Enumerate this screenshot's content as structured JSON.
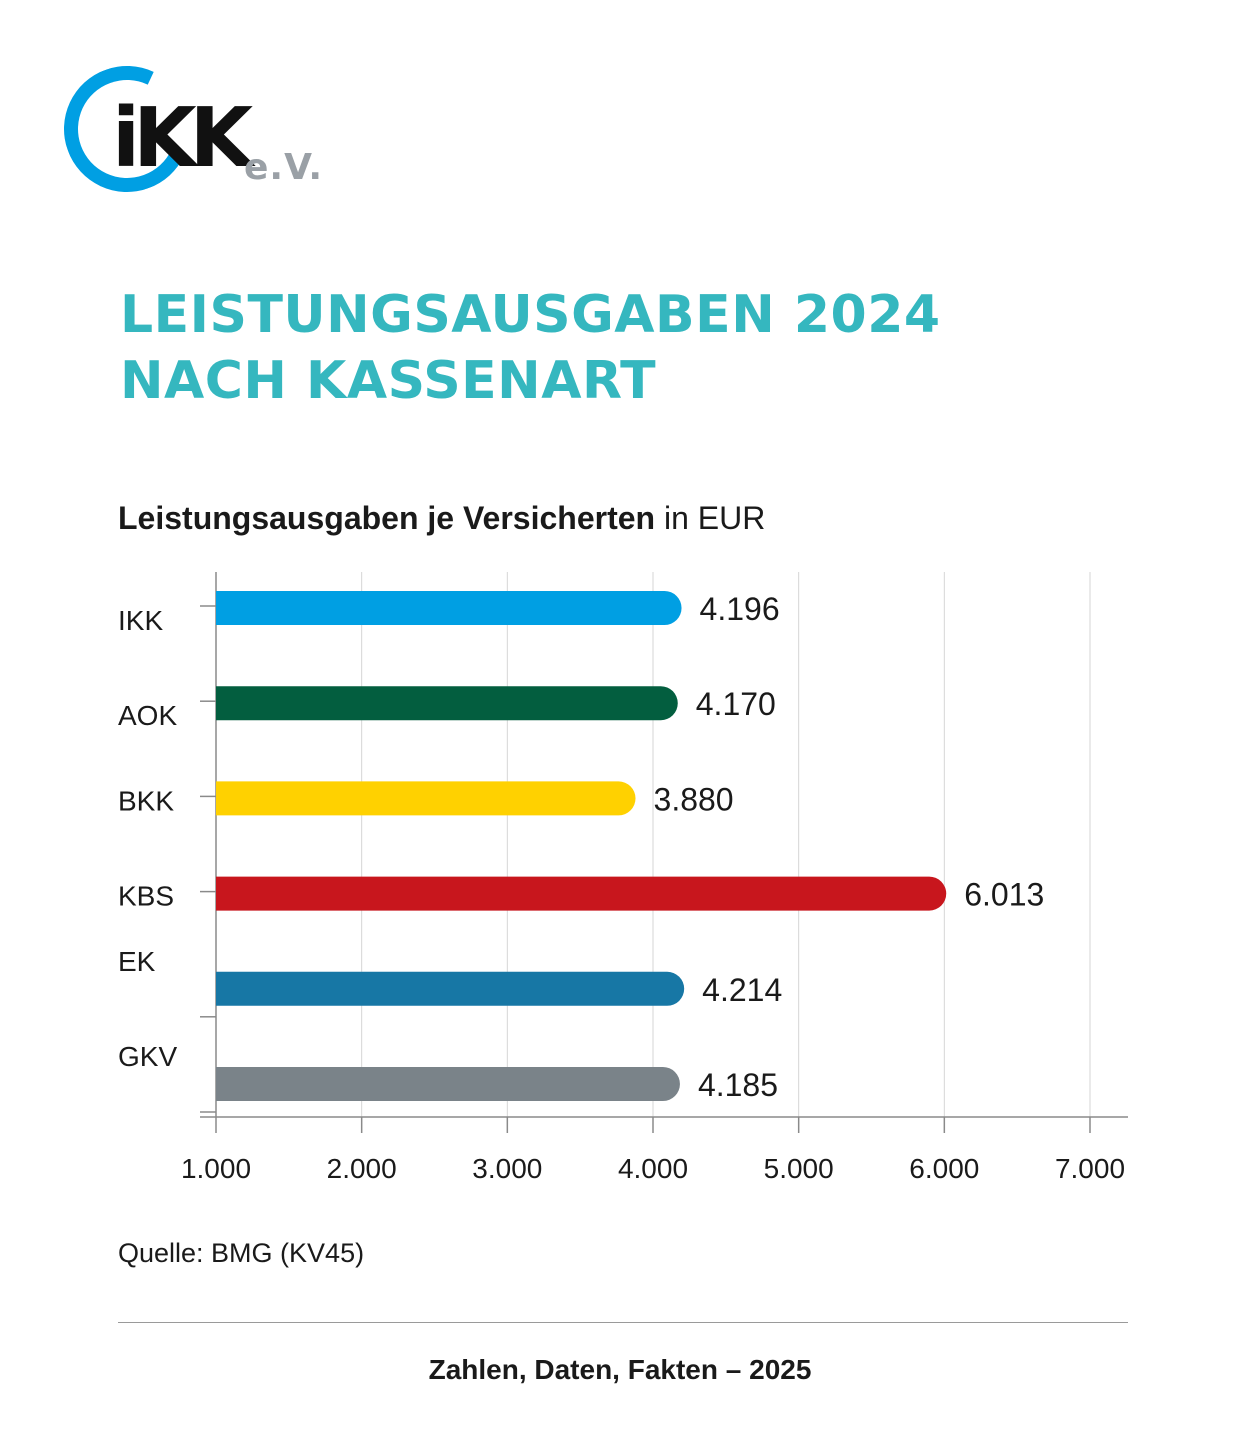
{
  "logo": {
    "wordmark": "iKK",
    "suffix": "e.V."
  },
  "title_lines": [
    "LEISTUNGSAUSGABEN 2024",
    "NACH KASSENART"
  ],
  "subtitle": {
    "bold": "Leistungsausgaben je Versicherten",
    "regular": "in EUR"
  },
  "colors": {
    "title": "#35b7bf",
    "logo_ring": "#009fe3"
  },
  "chart_data": {
    "type": "bar",
    "orientation": "horizontal",
    "categories": [
      "IKK",
      "AOK",
      "BKK",
      "KBS",
      "EK",
      "GKV"
    ],
    "values": [
      4196,
      4170,
      3880,
      6013,
      4214,
      4185
    ],
    "value_labels": [
      "4.196",
      "4.170",
      "3.880",
      "6.013",
      "4.214",
      "4.185"
    ],
    "bar_colors": [
      "#009fe3",
      "#035e3f",
      "#ffd100",
      "#c8161d",
      "#1777a5",
      "#7a8389"
    ],
    "xlim": [
      1000,
      7000
    ],
    "xticks": [
      1000,
      2000,
      3000,
      4000,
      5000,
      6000,
      7000
    ],
    "xtick_labels": [
      "1.000",
      "2.000",
      "3.000",
      "4.000",
      "5.000",
      "6.000",
      "7.000"
    ],
    "grid": "vertical",
    "legend": "none"
  },
  "source": "Quelle: BMG (KV45)",
  "footer": "Zahlen, Daten, Fakten – 2025"
}
